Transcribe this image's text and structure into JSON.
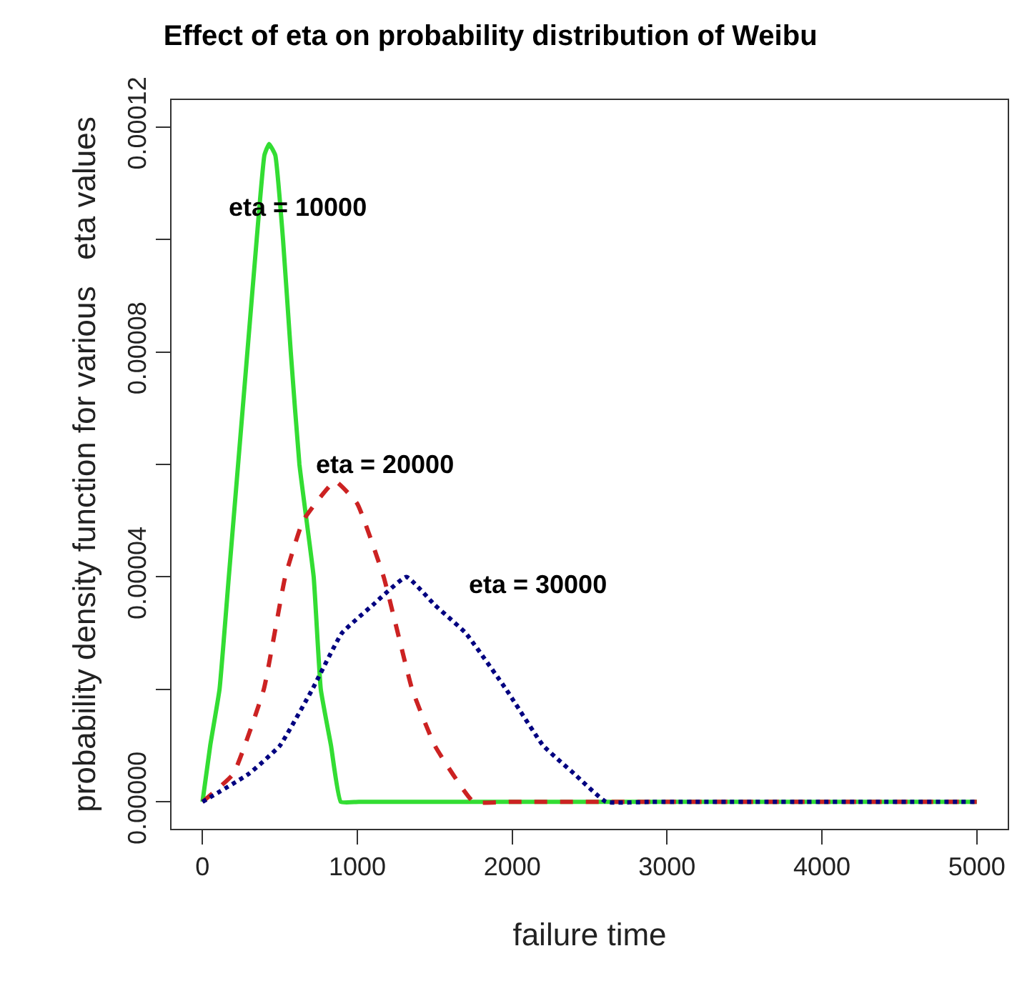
{
  "chart_data": {
    "type": "line",
    "title": "Effect of eta on probability distribution of Weibu",
    "xlabel": "failure time",
    "ylabel": "probability density function for various   eta values",
    "series": [
      {
        "color": "#33dd33",
        "line_style": "solid",
        "x": [
          0,
          50,
          110,
          170,
          230,
          290,
          350,
          400,
          430,
          470,
          520,
          570,
          626,
          718,
          764,
          830,
          893,
          1010,
          5000
        ],
        "values": [
          0,
          1e-05,
          2e-05,
          4e-05,
          6e-05,
          8e-05,
          0.0001,
          0.000115,
          0.000117,
          0.000115,
          0.0001,
          8e-05,
          6e-05,
          4e-05,
          2e-05,
          1e-05,
          0,
          0,
          0
        ]
      },
      {
        "color": "#cc2222",
        "line_style": "dashed",
        "x": [
          0,
          200,
          396,
          534,
          650,
          856,
          1000,
          1170,
          1354,
          1500,
          1750,
          2000,
          5000
        ],
        "values": [
          0,
          5e-06,
          2e-05,
          4e-05,
          5e-05,
          5.7e-05,
          5.3e-05,
          4e-05,
          2e-05,
          1e-05,
          0,
          0,
          0
        ]
      },
      {
        "color": "#000080",
        "line_style": "dotted",
        "x": [
          0,
          300,
          500,
          709,
          900,
          1100,
          1317,
          1500,
          1700,
          1961,
          2200,
          2400,
          2606,
          2900,
          5000
        ],
        "values": [
          0,
          5e-06,
          1e-05,
          2e-05,
          3e-05,
          3.5e-05,
          4e-05,
          3.5e-05,
          3e-05,
          2e-05,
          1e-05,
          5e-06,
          0,
          0,
          0
        ]
      }
    ],
    "annotations": [
      "eta = 10000",
      "eta = 20000",
      "eta = 30000"
    ],
    "xlim": [
      -200,
      5200
    ],
    "xticks": [
      0,
      1000,
      2000,
      3000,
      4000,
      5000
    ],
    "ylim": [
      -4.8e-06,
      0.0001248
    ],
    "yticks": [
      {
        "value": 0,
        "label": "0.00000"
      },
      {
        "value": 2e-05,
        "label": null
      },
      {
        "value": 4e-05,
        "label": "0.00004"
      },
      {
        "value": 6e-05,
        "label": null
      },
      {
        "value": 8e-05,
        "label": "0.00008"
      },
      {
        "value": 0.0001,
        "label": null
      },
      {
        "value": 0.00012,
        "label": "0.00012"
      }
    ],
    "grid": false
  }
}
